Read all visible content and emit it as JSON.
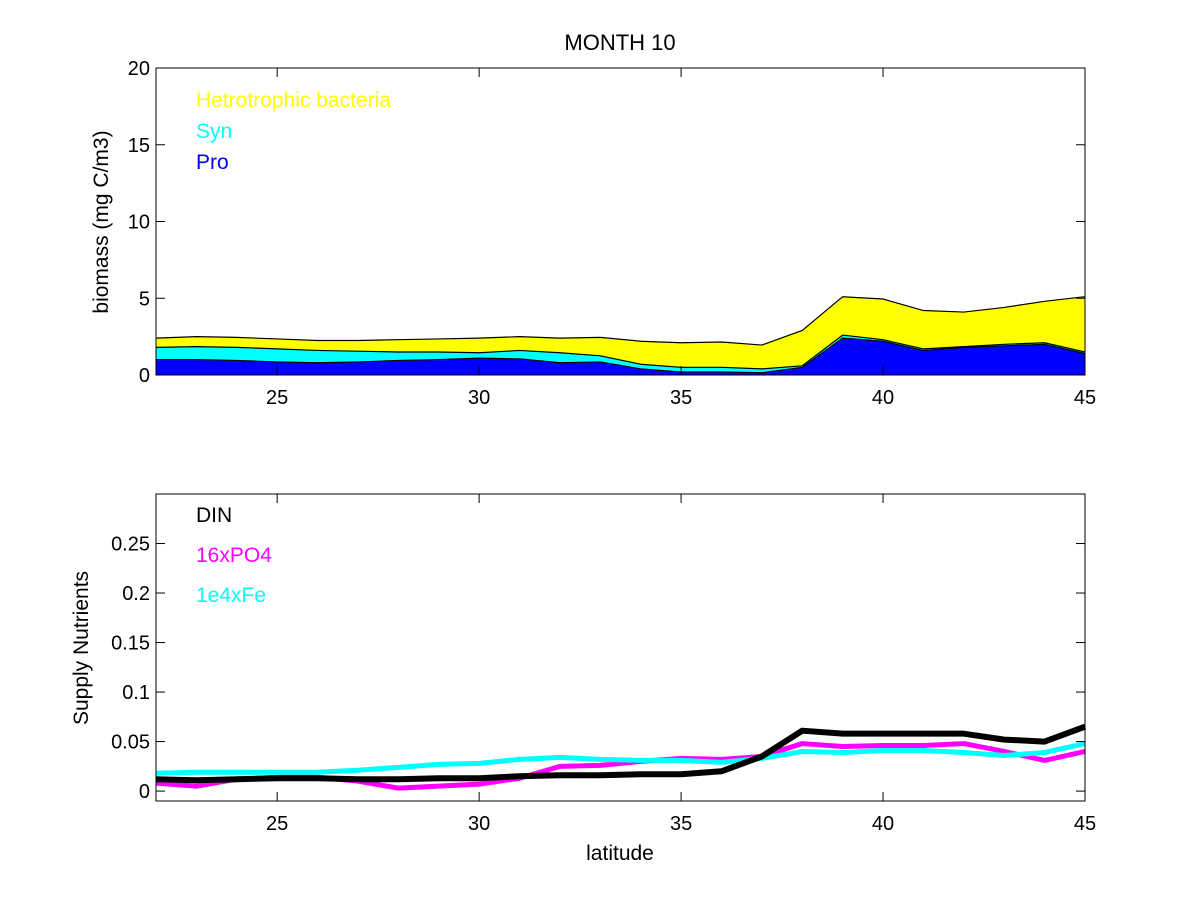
{
  "chart_data": [
    {
      "type": "area",
      "stacked": true,
      "title": "MONTH 10",
      "xlabel": "",
      "ylabel": "biomass (mg C/m3)",
      "xlim": [
        22,
        45
      ],
      "ylim": [
        0,
        20
      ],
      "xticks": [
        25,
        30,
        35,
        40,
        45
      ],
      "yticks": [
        0,
        5,
        10,
        15,
        20
      ],
      "grid": false,
      "legend_position": "top-left",
      "x": [
        22,
        23,
        24,
        25,
        26,
        27,
        28,
        29,
        30,
        31,
        32,
        33,
        34,
        35,
        36,
        37,
        38,
        39,
        40,
        41,
        42,
        43,
        44,
        45
      ],
      "series": [
        {
          "name": "Pro",
          "color": "#0000ff",
          "values": [
            1.0,
            1.0,
            0.95,
            0.85,
            0.8,
            0.85,
            0.95,
            1.0,
            1.1,
            1.05,
            0.8,
            0.85,
            0.4,
            0.2,
            0.2,
            0.15,
            0.5,
            2.4,
            2.2,
            1.6,
            1.8,
            1.9,
            2.0,
            1.4
          ]
        },
        {
          "name": "Syn",
          "color": "#00ffff",
          "values": [
            0.8,
            0.85,
            0.85,
            0.85,
            0.8,
            0.7,
            0.55,
            0.5,
            0.35,
            0.55,
            0.65,
            0.4,
            0.3,
            0.3,
            0.3,
            0.25,
            0.1,
            0.2,
            0.1,
            0.1,
            0.05,
            0.1,
            0.1,
            0.1
          ]
        },
        {
          "name": "Hetrotrophic bacteria",
          "color": "#ffff00",
          "values": [
            0.6,
            0.65,
            0.65,
            0.65,
            0.65,
            0.7,
            0.8,
            0.85,
            0.95,
            0.9,
            0.95,
            1.2,
            1.5,
            1.6,
            1.65,
            1.55,
            2.3,
            2.5,
            2.65,
            2.5,
            2.25,
            2.4,
            2.7,
            3.6
          ]
        }
      ]
    },
    {
      "type": "line",
      "title": "",
      "xlabel": "latitude",
      "ylabel": "Supply Nutrients",
      "xlim": [
        22,
        45
      ],
      "ylim": [
        -0.01,
        0.3
      ],
      "xticks": [
        25,
        30,
        35,
        40,
        45
      ],
      "yticks": [
        0,
        0.05,
        0.1,
        0.15,
        0.2,
        0.25
      ],
      "grid": false,
      "legend_position": "top-left",
      "x": [
        22,
        23,
        24,
        25,
        26,
        27,
        28,
        29,
        30,
        31,
        32,
        33,
        34,
        35,
        36,
        37,
        38,
        39,
        40,
        41,
        42,
        43,
        44,
        45
      ],
      "series": [
        {
          "name": "DIN",
          "color": "#000000",
          "values": [
            0.012,
            0.011,
            0.012,
            0.013,
            0.013,
            0.012,
            0.012,
            0.013,
            0.013,
            0.015,
            0.016,
            0.016,
            0.017,
            0.017,
            0.02,
            0.035,
            0.061,
            0.058,
            0.058,
            0.058,
            0.058,
            0.052,
            0.05,
            0.065
          ]
        },
        {
          "name": "16xPO4",
          "color": "#ff00ff",
          "values": [
            0.008,
            0.005,
            0.012,
            0.014,
            0.014,
            0.01,
            0.003,
            0.005,
            0.007,
            0.013,
            0.025,
            0.026,
            0.03,
            0.033,
            0.032,
            0.035,
            0.048,
            0.045,
            0.046,
            0.046,
            0.048,
            0.04,
            0.031,
            0.04
          ]
        },
        {
          "name": "1e4xFe",
          "color": "#00ffff",
          "values": [
            0.018,
            0.019,
            0.019,
            0.019,
            0.019,
            0.021,
            0.024,
            0.027,
            0.028,
            0.032,
            0.034,
            0.032,
            0.031,
            0.031,
            0.029,
            0.033,
            0.04,
            0.039,
            0.041,
            0.041,
            0.039,
            0.036,
            0.039,
            0.048
          ]
        }
      ]
    }
  ]
}
